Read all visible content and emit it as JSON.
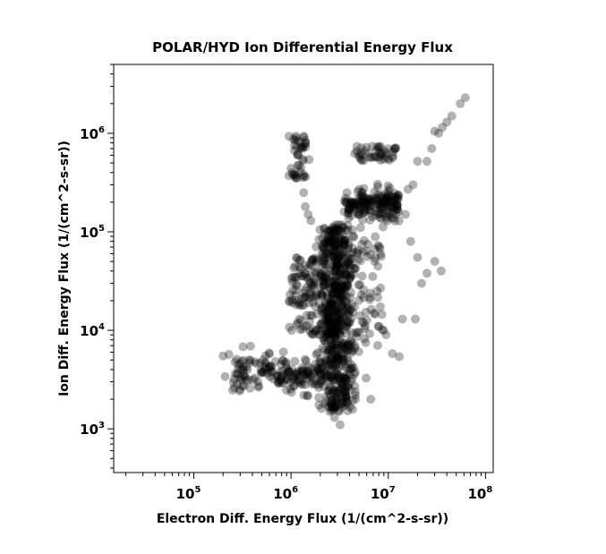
{
  "chart_data": {
    "type": "scatter",
    "title": "POLAR/HYD  Ion Differential Energy Flux",
    "xlabel": "Electron Diff. Energy Flux (1/(cm^2-s-sr))",
    "ylabel": "Ion Diff. Energy Flux (1/(cm^2-s-sr))",
    "xscale": "log",
    "yscale": "log",
    "xlim": [
      15000,
      120000000
    ],
    "ylim": [
      360,
      5000000
    ],
    "x_tick_base": "10",
    "x_tick_exponents": [
      "5",
      "6",
      "7",
      "8"
    ],
    "y_tick_base": "10",
    "y_tick_exponents": [
      "3",
      "4",
      "5",
      "6"
    ],
    "grid": false,
    "marker_color": "#000000",
    "marker_opacity": 0.3,
    "clusters": [
      {
        "name": "dense-column",
        "x_center": 3000000,
        "x_spread": 0.09,
        "y_min": 1500,
        "y_max": 120000,
        "count": 550
      },
      {
        "name": "horizontal-tail",
        "x_min": 250000,
        "x_max": 2600000,
        "y_center": 3600,
        "y_spread": 0.09,
        "count": 180
      },
      {
        "name": "upper-blob",
        "x_min": 3500000,
        "x_max": 13000000,
        "y_center": 190000,
        "y_spread": 0.08,
        "count": 180
      },
      {
        "name": "left-blob",
        "x_min": 950000,
        "x_max": 2500000,
        "y_min": 9000,
        "y_max": 55000,
        "count": 130
      },
      {
        "name": "mid-scatter",
        "x_min": 2000000,
        "x_max": 9000000,
        "y_min": 6000,
        "y_max": 90000,
        "count": 160
      },
      {
        "name": "column-top",
        "x_center": 1200000,
        "x_spread": 0.05,
        "y_min": 320000,
        "y_max": 980000,
        "count": 45
      },
      {
        "name": "top-right-blob",
        "x_min": 4500000,
        "x_max": 12000000,
        "y_min": 520000,
        "y_max": 740000,
        "count": 45
      }
    ],
    "points": [
      [
        62000000,
        2300000
      ],
      [
        55000000,
        2000000
      ],
      [
        45000000,
        1500000
      ],
      [
        40000000,
        1300000
      ],
      [
        36000000,
        1150000
      ],
      [
        33000000,
        1000000
      ],
      [
        30000000,
        1050000
      ],
      [
        28000000,
        700000
      ],
      [
        25000000,
        520000
      ],
      [
        20000000,
        520000
      ],
      [
        18000000,
        300000
      ],
      [
        16000000,
        270000
      ],
      [
        200000,
        5500
      ],
      [
        210000,
        3400
      ],
      [
        230000,
        5700
      ],
      [
        300000,
        3300
      ],
      [
        3200000,
        1100
      ],
      [
        2800000,
        1300
      ],
      [
        2500000,
        1500
      ],
      [
        2200000,
        1800
      ],
      [
        13000000,
        5400
      ],
      [
        11000000,
        5800
      ],
      [
        9500000,
        9000
      ],
      [
        14000000,
        13000
      ],
      [
        19000000,
        13000
      ],
      [
        22000000,
        30000
      ],
      [
        25000000,
        38000
      ],
      [
        30000000,
        50000
      ],
      [
        20000000,
        55000
      ],
      [
        17000000,
        80000
      ],
      [
        15000000,
        150000
      ],
      [
        35000000,
        40000
      ],
      [
        1500000,
        150000
      ],
      [
        1400000,
        180000
      ],
      [
        1350000,
        250000
      ],
      [
        1600000,
        130000
      ]
    ]
  }
}
